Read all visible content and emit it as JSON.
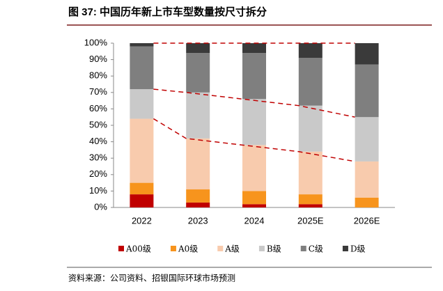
{
  "chart_data": {
    "type": "stacked_bar",
    "title": "图 37: 中国历年新上市车型数量按尺寸拆分",
    "source": "资料来源：公司资料、招银国际环球市场预测",
    "categories": [
      "2022",
      "2023",
      "2024",
      "2025E",
      "2026E"
    ],
    "series": [
      {
        "name": "A00级",
        "color": "#c00000",
        "values": [
          8,
          3,
          2,
          2,
          0
        ]
      },
      {
        "name": "A0级",
        "color": "#f7941d",
        "values": [
          7,
          8,
          8,
          6,
          6
        ]
      },
      {
        "name": "A级",
        "color": "#f8cbad",
        "values": [
          39,
          31,
          28,
          26,
          22
        ]
      },
      {
        "name": "B级",
        "color": "#c9c9c9",
        "values": [
          18,
          28,
          28,
          28,
          27
        ]
      },
      {
        "name": "C级",
        "color": "#7f7f7f",
        "values": [
          26,
          24,
          28,
          29,
          32
        ]
      },
      {
        "name": "D级",
        "color": "#3a3a3a",
        "values": [
          2,
          6,
          6,
          9,
          13
        ]
      }
    ],
    "ylim": [
      0,
      100
    ],
    "yticks": [
      {
        "value": 0,
        "label": "0%"
      },
      {
        "value": 10,
        "label": "10%"
      },
      {
        "value": 20,
        "label": "20%"
      },
      {
        "value": 30,
        "label": "30%"
      },
      {
        "value": 40,
        "label": "40%"
      },
      {
        "value": 50,
        "label": "50%"
      },
      {
        "value": 60,
        "label": "60%"
      },
      {
        "value": 70,
        "label": "70%"
      },
      {
        "value": 80,
        "label": "80%"
      },
      {
        "value": 90,
        "label": "90%"
      },
      {
        "value": 100,
        "label": "100%"
      }
    ],
    "trend_line_color": "#c00000"
  }
}
